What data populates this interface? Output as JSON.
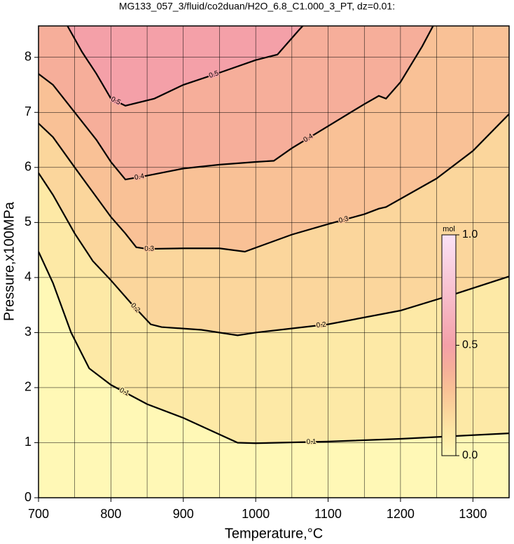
{
  "chart_data": {
    "type": "contour",
    "title": "MG133_057_3/fluid/co2duan/H2O_6.8_C1.000_3_PT, dz=0.01:",
    "x_label": "Temperature,°C",
    "y_label": "Pressure,x100MPa",
    "xlim": [
      700,
      1350
    ],
    "ylim": [
      0,
      8.57
    ],
    "xticks": [
      700,
      800,
      900,
      1000,
      1100,
      1200,
      1300
    ],
    "x_minor_ticks": [
      750,
      850,
      950,
      1050,
      1150,
      1250
    ],
    "yticks": [
      0,
      1,
      2,
      3,
      4,
      5,
      6,
      7,
      8
    ],
    "grid": true,
    "line_color": "#000000",
    "colormap": [
      {
        "value": 0,
        "color": "#fff8b6"
      },
      {
        "value": 0.1,
        "color": "#fde9a6"
      },
      {
        "value": 0.2,
        "color": "#fbd69c"
      },
      {
        "value": 0.3,
        "color": "#f9c196"
      },
      {
        "value": 0.4,
        "color": "#f6ae9a"
      },
      {
        "value": 0.5,
        "color": "#f4a0a8"
      },
      {
        "value": 1,
        "color": "#fbe2f6"
      }
    ],
    "colorbar": {
      "title": "mol",
      "lim": [
        0,
        1
      ],
      "ticks": [
        {
          "value": 0,
          "label": "0.0"
        },
        {
          "value": 0.5,
          "label": "0.5"
        },
        {
          "value": 1,
          "label": "1.0"
        }
      ]
    },
    "contours": [
      {
        "level": 0.1,
        "x": [
          700,
          720,
          745,
          770,
          800,
          850,
          900,
          950,
          975,
          1000,
          1100,
          1200,
          1350
        ],
        "y": [
          4.47,
          3.9,
          3.0,
          2.35,
          2.05,
          1.7,
          1.45,
          1.15,
          1.0,
          0.99,
          1.02,
          1.07,
          1.17
        ]
      },
      {
        "level": 0.2,
        "x": [
          700,
          720,
          750,
          775,
          800,
          830,
          855,
          870,
          925,
          975,
          1000,
          1100,
          1200,
          1275,
          1350
        ],
        "y": [
          5.9,
          5.5,
          4.8,
          4.3,
          3.95,
          3.5,
          3.15,
          3.1,
          3.05,
          2.95,
          3.0,
          3.15,
          3.4,
          3.7,
          4.02
        ]
      },
      {
        "level": 0.3,
        "x": [
          700,
          720,
          750,
          775,
          800,
          820,
          835,
          850,
          900,
          950,
          985,
          1050,
          1100,
          1150,
          1170,
          1180,
          1250,
          1300,
          1350
        ],
        "y": [
          6.8,
          6.55,
          6.0,
          5.55,
          5.1,
          4.8,
          4.55,
          4.52,
          4.53,
          4.53,
          4.47,
          4.78,
          4.97,
          5.15,
          5.25,
          5.28,
          5.8,
          6.3,
          6.97
        ]
      },
      {
        "level": 0.4,
        "x": [
          700,
          720,
          750,
          780,
          800,
          820,
          850,
          900,
          950,
          1000,
          1025,
          1050,
          1100,
          1150,
          1170,
          1180,
          1200,
          1230,
          1245
        ],
        "y": [
          7.7,
          7.5,
          7.0,
          6.5,
          6.1,
          5.78,
          5.85,
          5.98,
          6.05,
          6.1,
          6.12,
          6.35,
          6.75,
          7.15,
          7.3,
          7.25,
          7.55,
          8.2,
          8.57
        ]
      },
      {
        "level": 0.5,
        "x": [
          740,
          760,
          780,
          800,
          820,
          860,
          900,
          950,
          1000,
          1030,
          1060,
          1065
        ],
        "y": [
          8.57,
          8.1,
          7.7,
          7.25,
          7.12,
          7.25,
          7.5,
          7.72,
          7.95,
          8.05,
          8.5,
          8.57
        ]
      }
    ]
  }
}
